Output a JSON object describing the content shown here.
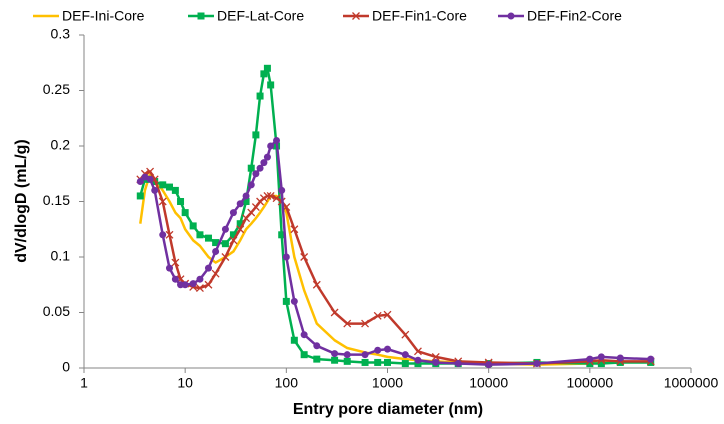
{
  "chart_data": {
    "type": "line",
    "x_label": "Entry pore diameter (nm)",
    "y_label": "dV/dlogD (mL/g)",
    "xscale": "log",
    "xlim": [
      1,
      1000000
    ],
    "xticks": [
      1,
      10,
      100,
      1000,
      10000,
      100000,
      1000000
    ],
    "ylim": [
      0,
      0.3
    ],
    "yticks": [
      0,
      0.05,
      0.1,
      0.15,
      0.2,
      0.25,
      0.3
    ],
    "grid": false,
    "legend": "top",
    "x": [
      3.6,
      4,
      4.5,
      5,
      6,
      7,
      8,
      9,
      10,
      12,
      14,
      17,
      20,
      25,
      30,
      35,
      40,
      45,
      50,
      55,
      60,
      65,
      70,
      80,
      90,
      100,
      120,
      150,
      200,
      300,
      400,
      600,
      800,
      1000,
      1500,
      2000,
      3000,
      5000,
      10000,
      30000,
      100000,
      130000,
      200000,
      400000
    ],
    "series": [
      {
        "name": "DEF-Ini-Core",
        "color": "#ffc000",
        "marker": "none",
        "values": [
          0.13,
          0.16,
          0.175,
          0.17,
          0.16,
          0.15,
          0.14,
          0.135,
          0.125,
          0.115,
          0.11,
          0.1,
          0.095,
          0.1,
          0.105,
          0.115,
          0.125,
          0.13,
          0.135,
          0.14,
          0.145,
          0.15,
          0.155,
          0.155,
          0.15,
          0.14,
          0.1,
          0.07,
          0.04,
          0.025,
          0.018,
          0.014,
          0.012,
          0.01,
          0.008,
          0.007,
          0.006,
          0.005,
          0.004,
          0.003,
          0.004,
          0.005,
          0.005,
          0.006
        ]
      },
      {
        "name": "DEF-Lat-Core",
        "color": "#00b050",
        "marker": "square",
        "values": [
          0.155,
          0.17,
          0.17,
          0.168,
          0.165,
          0.163,
          0.16,
          0.15,
          0.14,
          0.128,
          0.12,
          0.117,
          0.113,
          0.112,
          0.12,
          0.13,
          0.15,
          0.18,
          0.21,
          0.245,
          0.265,
          0.27,
          0.255,
          0.2,
          0.12,
          0.06,
          0.025,
          0.012,
          0.008,
          0.007,
          0.006,
          0.005,
          0.005,
          0.005,
          0.004,
          0.004,
          0.004,
          0.004,
          0.004,
          0.005,
          0.004,
          0.004,
          0.005,
          0.005
        ]
      },
      {
        "name": "DEF-Fin1-Core",
        "color": "#c0392b",
        "marker": "cross",
        "values": [
          0.17,
          0.175,
          0.177,
          0.17,
          0.15,
          0.12,
          0.095,
          0.08,
          0.076,
          0.073,
          0.072,
          0.075,
          0.085,
          0.1,
          0.115,
          0.125,
          0.135,
          0.14,
          0.145,
          0.15,
          0.153,
          0.155,
          0.155,
          0.153,
          0.15,
          0.145,
          0.125,
          0.1,
          0.075,
          0.05,
          0.04,
          0.04,
          0.047,
          0.048,
          0.03,
          0.015,
          0.01,
          0.006,
          0.005,
          0.004,
          0.006,
          0.007,
          0.006,
          0.006
        ]
      },
      {
        "name": "DEF-Fin2-Core",
        "color": "#7030a0",
        "marker": "circle",
        "values": [
          0.168,
          0.172,
          0.17,
          0.16,
          0.12,
          0.09,
          0.08,
          0.075,
          0.075,
          0.076,
          0.08,
          0.09,
          0.105,
          0.125,
          0.14,
          0.148,
          0.155,
          0.165,
          0.175,
          0.18,
          0.185,
          0.19,
          0.2,
          0.205,
          0.16,
          0.1,
          0.06,
          0.03,
          0.02,
          0.013,
          0.012,
          0.012,
          0.016,
          0.017,
          0.012,
          0.007,
          0.005,
          0.004,
          0.003,
          0.004,
          0.008,
          0.01,
          0.009,
          0.008
        ]
      }
    ]
  }
}
